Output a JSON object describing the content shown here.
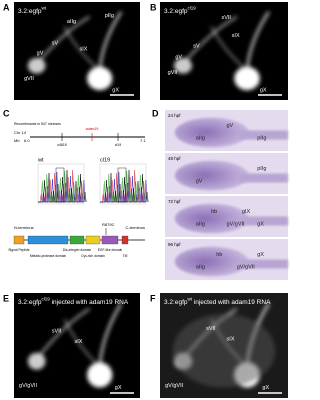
{
  "panels": {
    "A": {
      "letter": "A",
      "line": "3.2:egfp",
      "allele": "wt",
      "structures": [
        "aIIg",
        "pIIg",
        "sV",
        "sIX",
        "gV",
        "gVII",
        "gX"
      ]
    },
    "B": {
      "letter": "B",
      "line": "3.2:egfp",
      "allele": "cl19",
      "structures": [
        "sVII",
        "sIX",
        "sV",
        "gV",
        "gVII",
        "gX"
      ]
    },
    "C": {
      "letter": "C",
      "map": {
        "caption": "Recombinants in 547 meioses",
        "chromosome": "Chr 14",
        "unit": "Mb",
        "start": "6.0",
        "end": "7.1",
        "markers": [
          "z4819",
          "adam19",
          "cl19"
        ]
      },
      "chromatograms": [
        "wt",
        "cl19"
      ],
      "protein": {
        "n_terminus": "N-terminus",
        "c_terminus": "C-terminus",
        "mutation": "R879C",
        "domains": [
          "Signal Peptide",
          "Metallo-protease domain",
          "Dis-integrin domain",
          "Cys-rich domain",
          "EGF-like domain",
          "TM"
        ]
      }
    },
    "D": {
      "letter": "D",
      "stages": [
        {
          "stage": "24 hpf",
          "structures": [
            "aIIg",
            "gV",
            "pIIg"
          ]
        },
        {
          "stage": "48 hpf",
          "structures": [
            "gV",
            "pIIg"
          ]
        },
        {
          "stage": "72 hpf",
          "structures": [
            "aIIg",
            "hb",
            "gV/gVII",
            "gIX",
            "gX"
          ]
        },
        {
          "stage": "96 hpf",
          "structures": [
            "aIIg",
            "hb",
            "gV/gVII",
            "gX"
          ]
        }
      ]
    },
    "E": {
      "letter": "E",
      "line": "3.2:egfp",
      "allele": "cl19",
      "suffix": " injected with adam19 RNA",
      "structures": [
        "sVII",
        "sIX",
        "gV/gVII",
        "gX"
      ]
    },
    "F": {
      "letter": "F",
      "line": "3.2:egfp",
      "allele": "wt",
      "suffix": " injected with adam19 RNA",
      "structures": [
        "sVII",
        "sIX",
        "gV/gVII",
        "gX"
      ]
    }
  }
}
